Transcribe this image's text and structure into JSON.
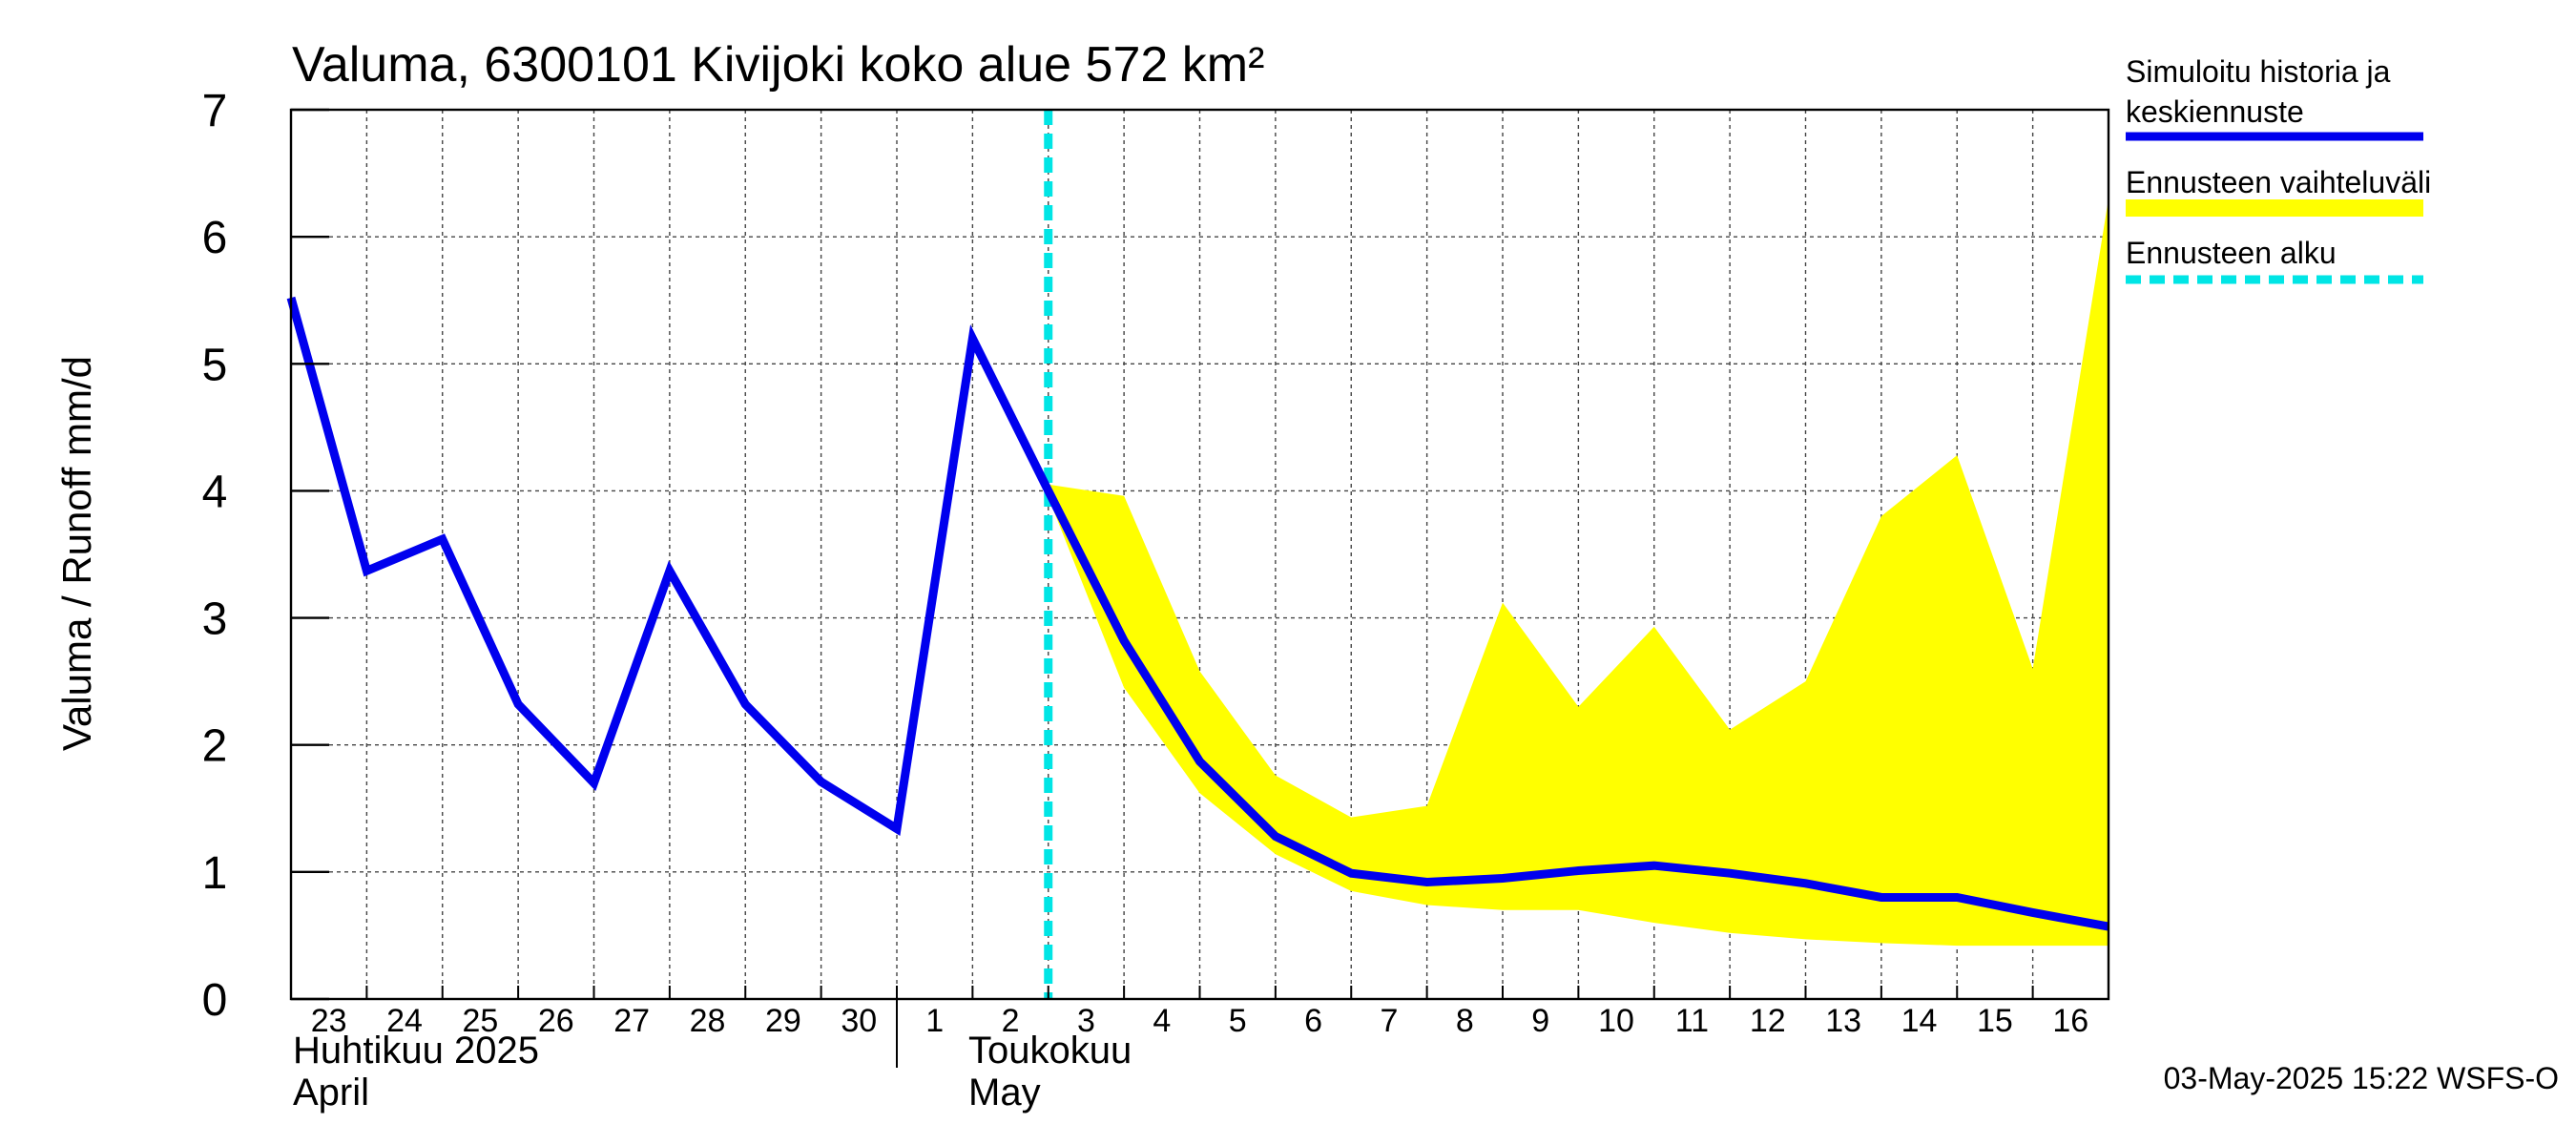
{
  "chart_data": {
    "type": "line",
    "title": "Valuma, 6300101 Kivijoki koko alue 572 km²",
    "ylabel": "Valuma / Runoff     mm/d",
    "ylim": [
      0,
      7
    ],
    "yticks": [
      0,
      1,
      2,
      3,
      4,
      5,
      6,
      7
    ],
    "grid": true,
    "legend_position": "right",
    "x_day_labels": [
      "23",
      "24",
      "25",
      "26",
      "27",
      "28",
      "29",
      "30",
      "1",
      "2",
      "3",
      "4",
      "5",
      "6",
      "7",
      "8",
      "9",
      "10",
      "11",
      "12",
      "13",
      "14",
      "15",
      "16"
    ],
    "month_labels": [
      {
        "fi": "Huhtikuu  2025",
        "en": "April",
        "start_day_index": 0
      },
      {
        "fi": "Toukokuu",
        "en": "May",
        "start_day_index": 8
      }
    ],
    "x_range_days": [
      0,
      24
    ],
    "forecast_start_day": 10,
    "series": [
      {
        "name": "Simuloitu historia ja keskiennuste",
        "color": "#0000ee",
        "points": [
          [
            0,
            5.52
          ],
          [
            1,
            3.37
          ],
          [
            2,
            3.62
          ],
          [
            3,
            2.32
          ],
          [
            4,
            1.7
          ],
          [
            5,
            3.37
          ],
          [
            6,
            2.32
          ],
          [
            7,
            1.71
          ],
          [
            8,
            1.34
          ],
          [
            9,
            5.2
          ],
          [
            10,
            4.0
          ],
          [
            11,
            2.82
          ],
          [
            12,
            1.87
          ],
          [
            13,
            1.28
          ],
          [
            14,
            0.99
          ],
          [
            15,
            0.92
          ],
          [
            16,
            0.95
          ],
          [
            17,
            1.01
          ],
          [
            18,
            1.05
          ],
          [
            19,
            0.99
          ],
          [
            20,
            0.91
          ],
          [
            21,
            0.8
          ],
          [
            22,
            0.8
          ],
          [
            23,
            0.68
          ],
          [
            24,
            0.57
          ]
        ]
      },
      {
        "name": "Ennusteen vaihteluväli",
        "color": "#ffff00",
        "upper": [
          [
            10,
            4.05
          ],
          [
            11,
            3.96
          ],
          [
            12,
            2.58
          ],
          [
            13,
            1.76
          ],
          [
            14,
            1.43
          ],
          [
            15,
            1.52
          ],
          [
            16,
            3.12
          ],
          [
            17,
            2.3
          ],
          [
            18,
            2.93
          ],
          [
            19,
            2.12
          ],
          [
            20,
            2.5
          ],
          [
            21,
            3.8
          ],
          [
            22,
            4.28
          ],
          [
            23,
            2.6
          ],
          [
            24,
            6.3
          ]
        ],
        "lower": [
          [
            10,
            3.95
          ],
          [
            11,
            2.45
          ],
          [
            12,
            1.62
          ],
          [
            13,
            1.14
          ],
          [
            14,
            0.85
          ],
          [
            15,
            0.74
          ],
          [
            16,
            0.7
          ],
          [
            17,
            0.7
          ],
          [
            18,
            0.6
          ],
          [
            19,
            0.52
          ],
          [
            20,
            0.47
          ],
          [
            21,
            0.44
          ],
          [
            22,
            0.42
          ],
          [
            23,
            0.42
          ],
          [
            24,
            0.42
          ]
        ]
      },
      {
        "name": "Ennusteen alku",
        "color": "#00e5e5",
        "x": 10
      }
    ],
    "legend": [
      {
        "line1": "Simuloitu historia ja",
        "line2": "keskiennuste",
        "color": "#0000ee",
        "style": "solid"
      },
      {
        "line1": "Ennusteen vaihteluväli",
        "line2": "",
        "color": "#ffff00",
        "style": "band"
      },
      {
        "line1": "Ennusteen alku",
        "line2": "",
        "color": "#00e5e5",
        "style": "dashed"
      }
    ]
  },
  "footer": {
    "timestamp": "03-May-2025 15:22 WSFS-O"
  }
}
